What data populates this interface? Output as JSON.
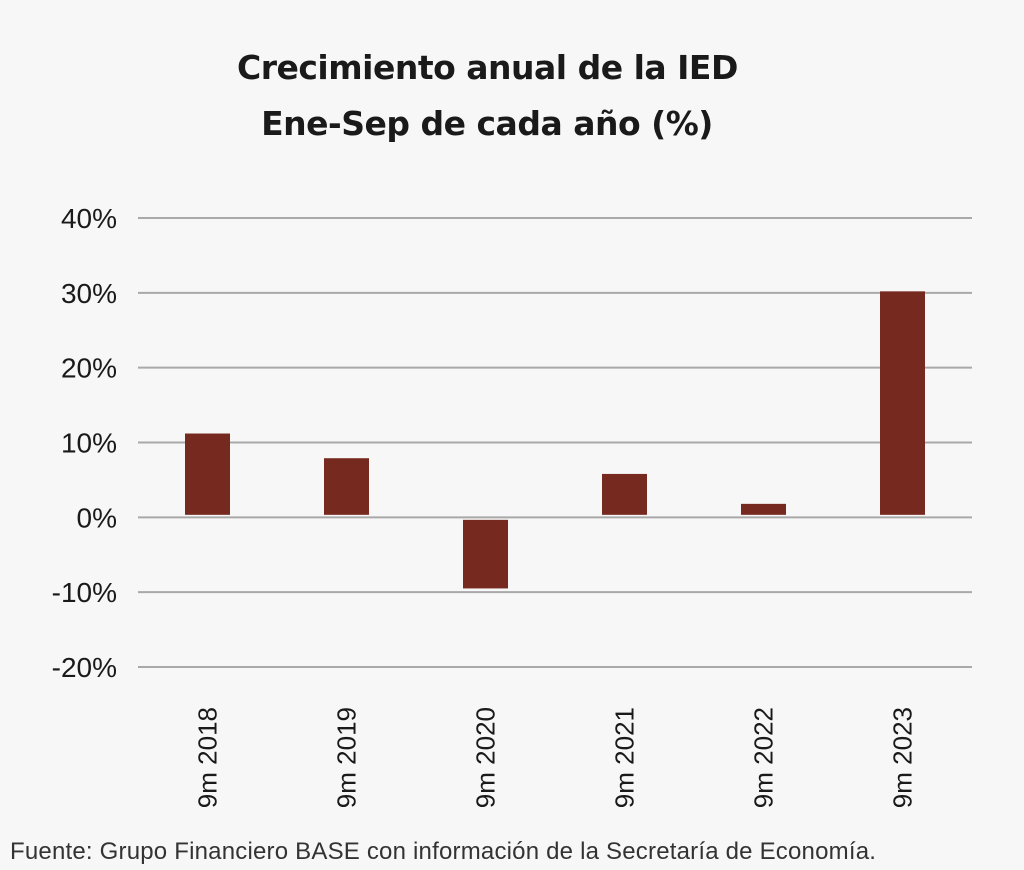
{
  "chart_data": {
    "type": "bar",
    "title": "Crecimiento anual de la IED",
    "subtitle": "Ene-Sep de cada año (%)",
    "categories": [
      "9m 2018",
      "9m 2019",
      "9m 2020",
      "9m 2021",
      "9m 2022",
      "9m 2023"
    ],
    "values": [
      11.2,
      7.9,
      -9.5,
      5.8,
      1.8,
      30.2
    ],
    "ylim": [
      -20,
      40
    ],
    "yticks": [
      "40%",
      "30%",
      "20%",
      "10%",
      "0%",
      "-10%",
      "-20%"
    ],
    "grid": true,
    "bar_color": "#76291e",
    "grid_color": "#a9a9a9"
  },
  "footer": {
    "source": "Fuente: Grupo Financiero BASE con información de la Secretaría de Economía."
  }
}
